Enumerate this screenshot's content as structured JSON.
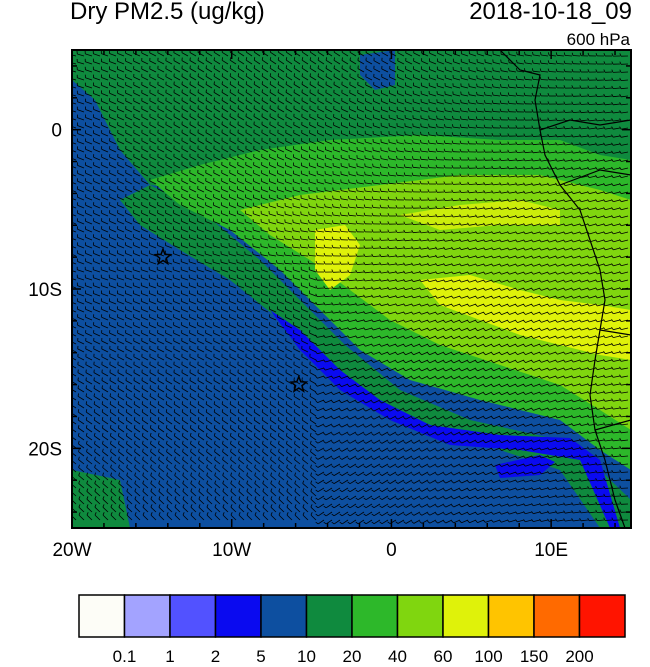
{
  "header": {
    "title": "Dry PM2.5 (ug/kg)",
    "datetime": "2018-10-18_09",
    "level": "600 hPa"
  },
  "map": {
    "lon_range": [
      -20,
      15
    ],
    "lat_range": [
      -25,
      5
    ],
    "x_ticks": [
      {
        "value": -20,
        "label": "20W"
      },
      {
        "value": -10,
        "label": "10W"
      },
      {
        "value": 0,
        "label": "0"
      },
      {
        "value": 10,
        "label": "10E"
      }
    ],
    "y_ticks": [
      {
        "value": 0,
        "label": "0"
      },
      {
        "value": -10,
        "label": "10S"
      },
      {
        "value": -20,
        "label": "20S"
      }
    ],
    "markers": [
      {
        "lon": -14.3,
        "lat": -8.0,
        "symbol": "star"
      },
      {
        "lon": -5.8,
        "lat": -16.0,
        "symbol": "star"
      }
    ]
  },
  "colorbar": {
    "colors": [
      "#fdfdf7",
      "#a3a3ff",
      "#5252ff",
      "#0a0af0",
      "#0d4fa0",
      "#0f8a3e",
      "#2db82a",
      "#80d60f",
      "#dff20a",
      "#ffc400",
      "#ff6a00",
      "#ff1400"
    ],
    "labels": [
      "0.1",
      "1",
      "2",
      "5",
      "10",
      "20",
      "40",
      "60",
      "100",
      "150",
      "200"
    ]
  }
}
